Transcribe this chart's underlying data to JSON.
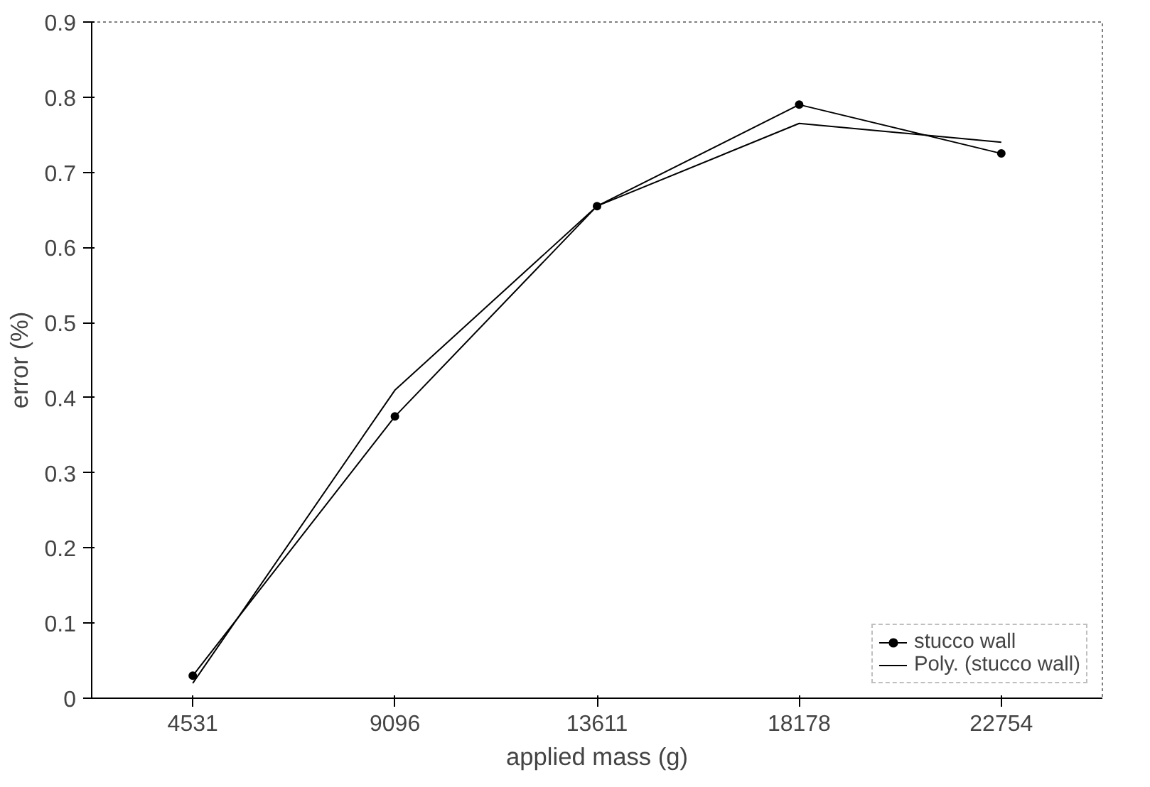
{
  "chart_data": {
    "type": "line",
    "xlabel": "applied mass (g)",
    "ylabel": "error (%)",
    "categories": [
      "4531",
      "9096",
      "13611",
      "18178",
      "22754"
    ],
    "ylim": [
      0,
      0.9
    ],
    "yticks": [
      0,
      0.1,
      0.2,
      0.3,
      0.4,
      0.5,
      0.6,
      0.7,
      0.8,
      0.9
    ],
    "grid": false,
    "legend": "bottom right",
    "series": [
      {
        "name": "stucco wall",
        "color": "#000000",
        "marker": "circle",
        "values": [
          0.03,
          0.375,
          0.655,
          0.79,
          0.725
        ]
      },
      {
        "name": "Poly. (stucco wall)",
        "color": "#000000",
        "marker": "none",
        "values": [
          0.02,
          0.41,
          0.655,
          0.765,
          0.74
        ]
      }
    ]
  }
}
